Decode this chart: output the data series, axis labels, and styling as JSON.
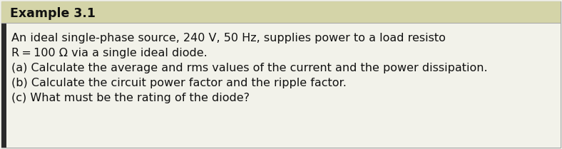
{
  "title": "Example 3.1",
  "title_bg_color": "#d4d4a8",
  "body_bg_color": "#f0f0e8",
  "white_bg_color": "#f2f2ea",
  "border_color": "#aaaaaa",
  "left_bar_color": "#2a2a2a",
  "title_fontsize": 12.5,
  "body_fontsize": 11.5,
  "line1": "An ideal single-phase source, 240 V, 50 Hz, supplies power to a load resisto",
  "line2": "R = 100 Ω via a single ideal diode.",
  "line3": "(a) Calculate the average and rms values of the current and the power dissipation.",
  "line4": "(b) Calculate the circuit power factor and the ripple factor.",
  "line5": "(c) What must be the rating of the diode?"
}
